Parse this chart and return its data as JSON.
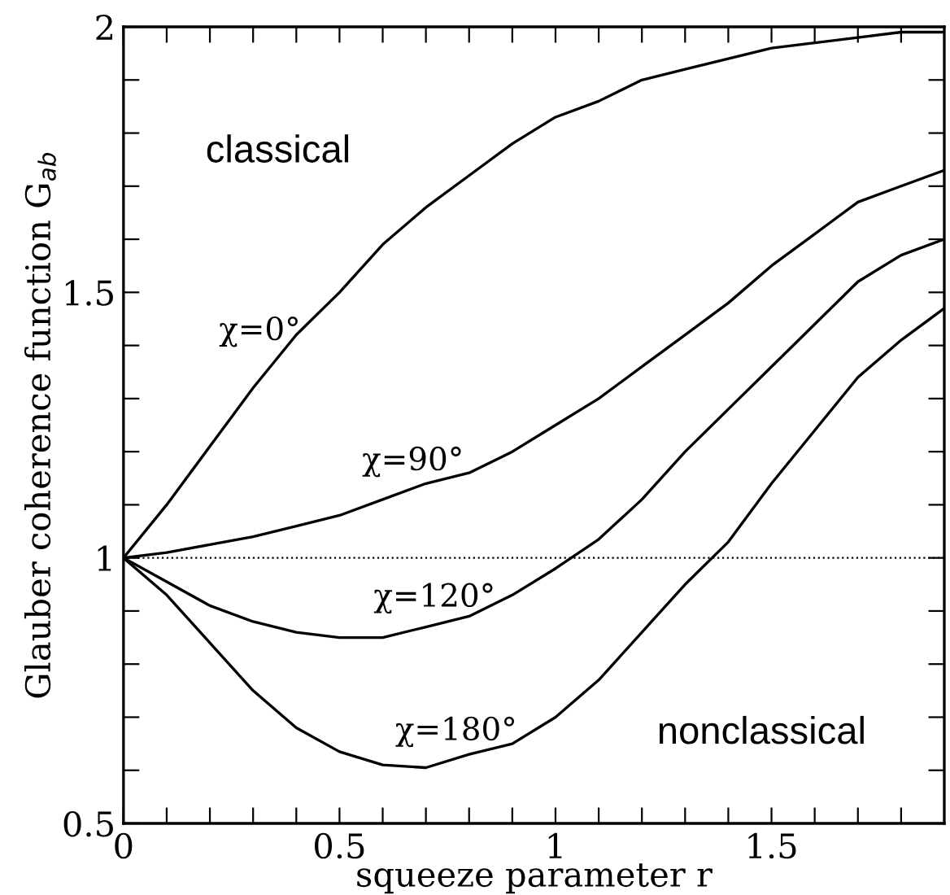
{
  "chart_data": {
    "type": "line",
    "xlabel": "squeeze parameter r",
    "ylabel": "Glauber coherence function G$_{ab}$",
    "x": [
      0,
      0.1,
      0.2,
      0.3,
      0.4,
      0.5,
      0.6,
      0.7,
      0.8,
      0.9,
      1.0,
      1.1,
      1.2,
      1.3,
      1.4,
      1.5,
      1.6,
      1.7,
      1.8,
      1.9
    ],
    "series": [
      {
        "name": "χ=0°",
        "color": "#000000",
        "values": [
          1,
          1.1,
          1.21,
          1.32,
          1.42,
          1.5,
          1.59,
          1.66,
          1.72,
          1.78,
          1.83,
          1.86,
          1.9,
          1.92,
          1.94,
          1.96,
          1.97,
          1.98,
          1.99,
          1.99
        ]
      },
      {
        "name": "χ=90°",
        "color": "#000000",
        "values": [
          1,
          1.01,
          1.025,
          1.04,
          1.06,
          1.08,
          1.11,
          1.14,
          1.16,
          1.2,
          1.25,
          1.3,
          1.36,
          1.42,
          1.48,
          1.55,
          1.61,
          1.67,
          1.7,
          1.73
        ]
      },
      {
        "name": "χ=120°",
        "color": "#000000",
        "values": [
          1,
          0.955,
          0.91,
          0.88,
          0.86,
          0.85,
          0.85,
          0.87,
          0.89,
          0.93,
          0.98,
          1.035,
          1.11,
          1.2,
          1.28,
          1.36,
          1.44,
          1.52,
          1.57,
          1.6
        ]
      },
      {
        "name": "χ=180°",
        "color": "#000000",
        "values": [
          1,
          0.93,
          0.84,
          0.75,
          0.68,
          0.635,
          0.61,
          0.605,
          0.63,
          0.65,
          0.7,
          0.77,
          0.86,
          0.95,
          1.03,
          1.14,
          1.24,
          1.34,
          1.41,
          1.47
        ]
      }
    ],
    "xlim": [
      0,
      1.9
    ],
    "ylim": [
      0.5,
      2
    ],
    "xticks": [
      0,
      {
        "value": 0.1,
        "label": null
      },
      {
        "value": 0.2,
        "label": null
      },
      {
        "value": 0.3,
        "label": null
      },
      {
        "value": 0.4,
        "label": null
      },
      0.5,
      {
        "value": 0.6,
        "label": null
      },
      {
        "value": 0.7,
        "label": null
      },
      {
        "value": 0.8,
        "label": null
      },
      {
        "value": 0.9,
        "label": null
      },
      1,
      {
        "value": 1.1,
        "label": null
      },
      {
        "value": 1.2,
        "label": null
      },
      {
        "value": 1.3,
        "label": null
      },
      {
        "value": 1.4,
        "label": null
      },
      1.5,
      {
        "value": 1.6,
        "label": null
      },
      {
        "value": 1.7,
        "label": null
      },
      {
        "value": 1.8,
        "label": null
      }
    ],
    "yticks": [
      0.5,
      {
        "value": 0.6,
        "label": null
      },
      {
        "value": 0.7,
        "label": null
      },
      {
        "value": 0.8,
        "label": null
      },
      {
        "value": 0.9,
        "label": null
      },
      1,
      {
        "value": 1.1,
        "label": null
      },
      {
        "value": 1.2,
        "label": null
      },
      {
        "value": 1.3,
        "label": null
      },
      {
        "value": 1.4,
        "label": null
      },
      1.5,
      {
        "value": 1.6,
        "label": null
      },
      {
        "value": 1.7,
        "label": null
      },
      {
        "value": 1.8,
        "label": null
      },
      {
        "value": 1.9,
        "label": null
      },
      2
    ],
    "ref_lines": [
      {
        "axis": "y",
        "value": 1,
        "line_style": "dotted",
        "color": "#000000"
      }
    ],
    "annotations": [
      "classical",
      "nonclassical"
    ],
    "grid": false,
    "legend": false,
    "marker": "none",
    "line_style": "solid"
  }
}
